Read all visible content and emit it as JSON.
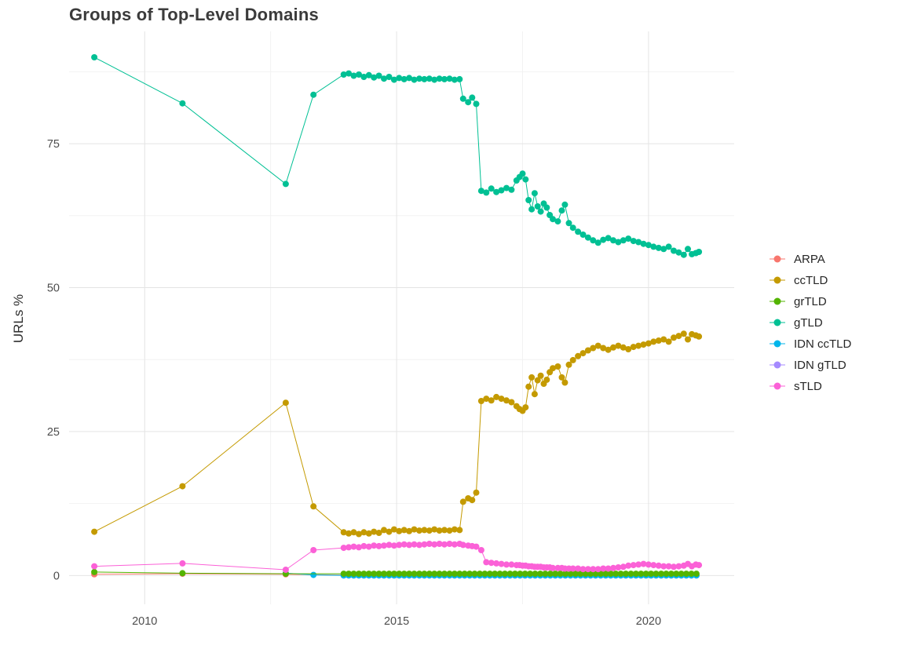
{
  "chart_data": {
    "type": "line",
    "title": "Groups of Top-Level Domains",
    "xlabel": "",
    "ylabel": "URLs %",
    "xlim": [
      2008.5,
      2021.7
    ],
    "ylim": [
      -5,
      94.5
    ],
    "xticks": [
      2010,
      2015,
      2020
    ],
    "xtick_labels": [
      "2010",
      "2015",
      "2020"
    ],
    "x_minor": [
      2012.5,
      2017.5
    ],
    "yticks": [
      0,
      25,
      50,
      75
    ],
    "ytick_labels": [
      "0",
      "25",
      "50",
      "75"
    ],
    "y_minor": [
      12.5,
      37.5,
      62.5,
      87.5
    ],
    "grid": true,
    "legend_position": "right",
    "series": [
      {
        "name": "ARPA",
        "color": "#F8766D",
        "z": 1,
        "points": [
          [
            2009.0,
            0.2
          ],
          [
            2010.75,
            0.3
          ],
          [
            2012.8,
            0.2
          ]
        ],
        "dense": {
          "from": 2013.95,
          "to": 2021.0,
          "step": 0.1,
          "value": 0.05
        }
      },
      {
        "name": "ccTLD",
        "color": "#C49A00",
        "z": 5,
        "points": [
          [
            2009.0,
            7.6
          ],
          [
            2010.75,
            15.5
          ],
          [
            2012.8,
            30.0
          ],
          [
            2013.35,
            12.0
          ],
          [
            2013.95,
            7.5
          ],
          [
            2014.05,
            7.3
          ],
          [
            2014.15,
            7.5
          ],
          [
            2014.25,
            7.2
          ],
          [
            2014.35,
            7.5
          ],
          [
            2014.45,
            7.3
          ],
          [
            2014.55,
            7.6
          ],
          [
            2014.65,
            7.4
          ],
          [
            2014.75,
            7.9
          ],
          [
            2014.85,
            7.6
          ],
          [
            2014.95,
            8.0
          ],
          [
            2015.05,
            7.7
          ],
          [
            2015.15,
            7.9
          ],
          [
            2015.25,
            7.7
          ],
          [
            2015.35,
            8.0
          ],
          [
            2015.45,
            7.8
          ],
          [
            2015.55,
            7.9
          ],
          [
            2015.65,
            7.8
          ],
          [
            2015.75,
            8.0
          ],
          [
            2015.85,
            7.8
          ],
          [
            2015.95,
            7.9
          ],
          [
            2016.05,
            7.8
          ],
          [
            2016.15,
            8.0
          ],
          [
            2016.25,
            7.9
          ],
          [
            2016.32,
            12.8
          ],
          [
            2016.42,
            13.4
          ],
          [
            2016.5,
            13.1
          ],
          [
            2016.58,
            14.4
          ],
          [
            2016.68,
            30.3
          ],
          [
            2016.78,
            30.7
          ],
          [
            2016.88,
            30.4
          ],
          [
            2016.98,
            31.0
          ],
          [
            2017.08,
            30.7
          ],
          [
            2017.18,
            30.4
          ],
          [
            2017.28,
            30.1
          ],
          [
            2017.38,
            29.4
          ],
          [
            2017.44,
            28.9
          ],
          [
            2017.5,
            28.6
          ],
          [
            2017.56,
            29.2
          ],
          [
            2017.62,
            32.8
          ],
          [
            2017.68,
            34.4
          ],
          [
            2017.74,
            31.5
          ],
          [
            2017.8,
            33.9
          ],
          [
            2017.86,
            34.7
          ],
          [
            2017.92,
            33.3
          ],
          [
            2017.98,
            34.0
          ],
          [
            2018.04,
            35.3
          ],
          [
            2018.1,
            36.0
          ],
          [
            2018.2,
            36.3
          ],
          [
            2018.28,
            34.4
          ],
          [
            2018.34,
            33.5
          ],
          [
            2018.42,
            36.6
          ],
          [
            2018.5,
            37.4
          ],
          [
            2018.6,
            38.1
          ],
          [
            2018.7,
            38.6
          ],
          [
            2018.8,
            39.1
          ],
          [
            2018.9,
            39.5
          ],
          [
            2019.0,
            39.9
          ],
          [
            2019.1,
            39.5
          ],
          [
            2019.2,
            39.2
          ],
          [
            2019.3,
            39.6
          ],
          [
            2019.4,
            39.9
          ],
          [
            2019.5,
            39.6
          ],
          [
            2019.6,
            39.3
          ],
          [
            2019.7,
            39.7
          ],
          [
            2019.8,
            39.9
          ],
          [
            2019.9,
            40.1
          ],
          [
            2020.0,
            40.3
          ],
          [
            2020.1,
            40.6
          ],
          [
            2020.2,
            40.8
          ],
          [
            2020.3,
            41.0
          ],
          [
            2020.4,
            40.6
          ],
          [
            2020.5,
            41.3
          ],
          [
            2020.6,
            41.6
          ],
          [
            2020.7,
            42.0
          ],
          [
            2020.78,
            41.0
          ],
          [
            2020.86,
            41.9
          ],
          [
            2020.94,
            41.7
          ],
          [
            2021.0,
            41.5
          ]
        ]
      },
      {
        "name": "grTLD",
        "color": "#53B400",
        "z": 4,
        "points": [
          [
            2009.0,
            0.6
          ],
          [
            2010.75,
            0.4
          ],
          [
            2012.8,
            0.3
          ]
        ],
        "dense": {
          "from": 2013.95,
          "to": 2021.0,
          "step": 0.1,
          "value": 0.3
        }
      },
      {
        "name": "gTLD",
        "color": "#00C094",
        "z": 6,
        "points": [
          [
            2009.0,
            90.0
          ],
          [
            2010.75,
            82.0
          ],
          [
            2012.8,
            68.0
          ],
          [
            2013.35,
            83.5
          ],
          [
            2013.95,
            87.0
          ],
          [
            2014.05,
            87.2
          ],
          [
            2014.15,
            86.8
          ],
          [
            2014.25,
            87.0
          ],
          [
            2014.35,
            86.6
          ],
          [
            2014.45,
            86.9
          ],
          [
            2014.55,
            86.5
          ],
          [
            2014.65,
            86.8
          ],
          [
            2014.75,
            86.3
          ],
          [
            2014.85,
            86.6
          ],
          [
            2014.95,
            86.1
          ],
          [
            2015.05,
            86.4
          ],
          [
            2015.15,
            86.2
          ],
          [
            2015.25,
            86.4
          ],
          [
            2015.35,
            86.1
          ],
          [
            2015.45,
            86.3
          ],
          [
            2015.55,
            86.2
          ],
          [
            2015.65,
            86.3
          ],
          [
            2015.75,
            86.1
          ],
          [
            2015.85,
            86.3
          ],
          [
            2015.95,
            86.2
          ],
          [
            2016.05,
            86.3
          ],
          [
            2016.15,
            86.1
          ],
          [
            2016.25,
            86.2
          ],
          [
            2016.32,
            82.8
          ],
          [
            2016.42,
            82.2
          ],
          [
            2016.5,
            83.0
          ],
          [
            2016.58,
            81.9
          ],
          [
            2016.68,
            66.8
          ],
          [
            2016.78,
            66.5
          ],
          [
            2016.88,
            67.2
          ],
          [
            2016.98,
            66.6
          ],
          [
            2017.08,
            66.9
          ],
          [
            2017.18,
            67.3
          ],
          [
            2017.28,
            67.0
          ],
          [
            2017.38,
            68.6
          ],
          [
            2017.44,
            69.2
          ],
          [
            2017.5,
            69.8
          ],
          [
            2017.56,
            68.8
          ],
          [
            2017.62,
            65.2
          ],
          [
            2017.68,
            63.6
          ],
          [
            2017.74,
            66.4
          ],
          [
            2017.8,
            64.1
          ],
          [
            2017.86,
            63.2
          ],
          [
            2017.92,
            64.6
          ],
          [
            2017.98,
            63.9
          ],
          [
            2018.04,
            62.6
          ],
          [
            2018.1,
            61.9
          ],
          [
            2018.2,
            61.5
          ],
          [
            2018.28,
            63.4
          ],
          [
            2018.34,
            64.4
          ],
          [
            2018.42,
            61.2
          ],
          [
            2018.5,
            60.4
          ],
          [
            2018.6,
            59.7
          ],
          [
            2018.7,
            59.2
          ],
          [
            2018.8,
            58.7
          ],
          [
            2018.9,
            58.2
          ],
          [
            2019.0,
            57.8
          ],
          [
            2019.1,
            58.3
          ],
          [
            2019.2,
            58.6
          ],
          [
            2019.3,
            58.2
          ],
          [
            2019.4,
            57.9
          ],
          [
            2019.5,
            58.2
          ],
          [
            2019.6,
            58.5
          ],
          [
            2019.7,
            58.1
          ],
          [
            2019.8,
            57.9
          ],
          [
            2019.9,
            57.6
          ],
          [
            2020.0,
            57.4
          ],
          [
            2020.1,
            57.1
          ],
          [
            2020.2,
            56.9
          ],
          [
            2020.3,
            56.7
          ],
          [
            2020.4,
            57.1
          ],
          [
            2020.5,
            56.4
          ],
          [
            2020.6,
            56.1
          ],
          [
            2020.7,
            55.7
          ],
          [
            2020.78,
            56.7
          ],
          [
            2020.86,
            55.8
          ],
          [
            2020.94,
            56.0
          ],
          [
            2021.0,
            56.2
          ]
        ]
      },
      {
        "name": "IDN ccTLD",
        "color": "#00B6EB",
        "z": 3,
        "points": [
          [
            2012.8,
            0.4
          ],
          [
            2013.35,
            0.1
          ]
        ],
        "dense": {
          "from": 2013.95,
          "to": 2021.0,
          "step": 0.1,
          "value": 0.02
        }
      },
      {
        "name": "IDN gTLD",
        "color": "#A58AFF",
        "z": 2,
        "points": [],
        "dense": {
          "from": 2013.95,
          "to": 2021.0,
          "step": 0.1,
          "value": 0.0
        }
      },
      {
        "name": "sTLD",
        "color": "#FB61D7",
        "z": 7,
        "points": [
          [
            2009.0,
            1.6
          ],
          [
            2010.75,
            2.1
          ],
          [
            2012.8,
            1.0
          ],
          [
            2013.35,
            4.4
          ],
          [
            2013.95,
            4.8
          ],
          [
            2014.05,
            4.9
          ],
          [
            2014.15,
            5.0
          ],
          [
            2014.25,
            4.9
          ],
          [
            2014.35,
            5.1
          ],
          [
            2014.45,
            5.0
          ],
          [
            2014.55,
            5.2
          ],
          [
            2014.65,
            5.1
          ],
          [
            2014.75,
            5.2
          ],
          [
            2014.85,
            5.3
          ],
          [
            2014.95,
            5.2
          ],
          [
            2015.05,
            5.3
          ],
          [
            2015.15,
            5.4
          ],
          [
            2015.25,
            5.3
          ],
          [
            2015.35,
            5.4
          ],
          [
            2015.45,
            5.3
          ],
          [
            2015.55,
            5.4
          ],
          [
            2015.65,
            5.5
          ],
          [
            2015.75,
            5.4
          ],
          [
            2015.85,
            5.5
          ],
          [
            2015.95,
            5.4
          ],
          [
            2016.05,
            5.5
          ],
          [
            2016.15,
            5.4
          ],
          [
            2016.25,
            5.5
          ],
          [
            2016.32,
            5.3
          ],
          [
            2016.42,
            5.2
          ],
          [
            2016.5,
            5.1
          ],
          [
            2016.58,
            5.0
          ],
          [
            2016.68,
            4.4
          ],
          [
            2016.78,
            2.3
          ],
          [
            2016.88,
            2.2
          ],
          [
            2016.98,
            2.1
          ],
          [
            2017.08,
            2.0
          ],
          [
            2017.18,
            1.9
          ],
          [
            2017.28,
            1.9
          ],
          [
            2017.38,
            1.8
          ],
          [
            2017.44,
            1.8
          ],
          [
            2017.5,
            1.7
          ],
          [
            2017.56,
            1.7
          ],
          [
            2017.62,
            1.6
          ],
          [
            2017.68,
            1.6
          ],
          [
            2017.74,
            1.5
          ],
          [
            2017.8,
            1.5
          ],
          [
            2017.86,
            1.5
          ],
          [
            2017.92,
            1.4
          ],
          [
            2017.98,
            1.4
          ],
          [
            2018.04,
            1.4
          ],
          [
            2018.1,
            1.3
          ],
          [
            2018.2,
            1.3
          ],
          [
            2018.28,
            1.3
          ],
          [
            2018.34,
            1.2
          ],
          [
            2018.42,
            1.2
          ],
          [
            2018.5,
            1.2
          ],
          [
            2018.6,
            1.2
          ],
          [
            2018.7,
            1.1
          ],
          [
            2018.8,
            1.1
          ],
          [
            2018.9,
            1.1
          ],
          [
            2019.0,
            1.1
          ],
          [
            2019.1,
            1.2
          ],
          [
            2019.2,
            1.2
          ],
          [
            2019.3,
            1.3
          ],
          [
            2019.4,
            1.4
          ],
          [
            2019.5,
            1.5
          ],
          [
            2019.6,
            1.7
          ],
          [
            2019.7,
            1.8
          ],
          [
            2019.8,
            1.9
          ],
          [
            2019.9,
            2.0
          ],
          [
            2020.0,
            1.9
          ],
          [
            2020.1,
            1.8
          ],
          [
            2020.2,
            1.7
          ],
          [
            2020.3,
            1.6
          ],
          [
            2020.4,
            1.6
          ],
          [
            2020.5,
            1.5
          ],
          [
            2020.6,
            1.6
          ],
          [
            2020.7,
            1.7
          ],
          [
            2020.78,
            2.0
          ],
          [
            2020.86,
            1.6
          ],
          [
            2020.94,
            1.9
          ],
          [
            2021.0,
            1.8
          ]
        ]
      }
    ]
  }
}
